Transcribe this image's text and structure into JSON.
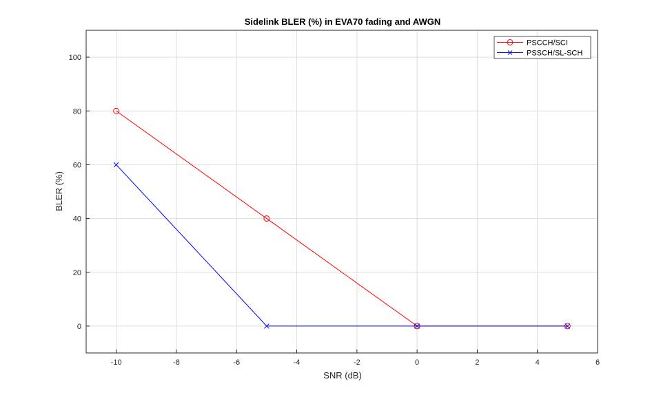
{
  "chart_data": {
    "type": "line",
    "title": "Sidelink BLER (%) in EVA70 fading and AWGN",
    "xlabel": "SNR (dB)",
    "ylabel": "BLER (%)",
    "xlim": [
      -11,
      6
    ],
    "ylim": [
      -10,
      110
    ],
    "xticks": [
      -10,
      -8,
      -6,
      -4,
      -2,
      0,
      2,
      4,
      6
    ],
    "yticks": [
      0,
      20,
      40,
      60,
      80,
      100
    ],
    "grid": true,
    "legend_position": "top-right",
    "series": [
      {
        "name": "PSCCH/SCI",
        "color": "#ff0000",
        "marker": "circle",
        "x": [
          -10,
          -5,
          0,
          5
        ],
        "y": [
          80,
          40,
          0,
          0
        ]
      },
      {
        "name": "PSSCH/SL-SCH",
        "color": "#0000ff",
        "marker": "x",
        "x": [
          -10,
          -5,
          0,
          5
        ],
        "y": [
          60,
          0,
          0,
          0
        ]
      }
    ]
  }
}
